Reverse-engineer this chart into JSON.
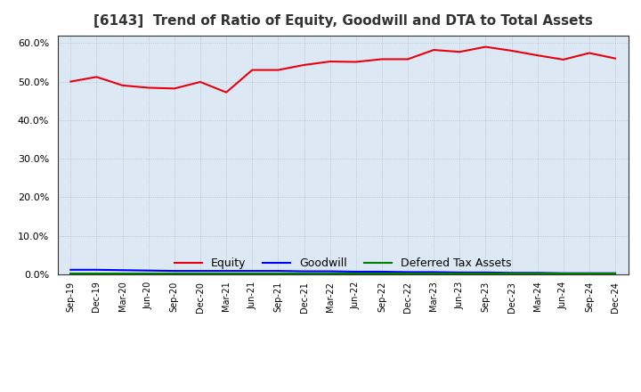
{
  "title": "[6143]  Trend of Ratio of Equity, Goodwill and DTA to Total Assets",
  "x_labels": [
    "Sep-19",
    "Dec-19",
    "Mar-20",
    "Jun-20",
    "Sep-20",
    "Dec-20",
    "Mar-21",
    "Jun-21",
    "Sep-21",
    "Dec-21",
    "Mar-22",
    "Jun-22",
    "Sep-22",
    "Dec-22",
    "Mar-23",
    "Jun-23",
    "Sep-23",
    "Dec-23",
    "Mar-24",
    "Jun-24",
    "Sep-24",
    "Dec-24"
  ],
  "equity": [
    0.5,
    0.512,
    0.49,
    0.484,
    0.482,
    0.499,
    0.472,
    0.53,
    0.53,
    0.543,
    0.552,
    0.551,
    0.558,
    0.558,
    0.582,
    0.577,
    0.59,
    0.58,
    0.568,
    0.557,
    0.574,
    0.56
  ],
  "goodwill": [
    0.012,
    0.012,
    0.011,
    0.01,
    0.009,
    0.009,
    0.009,
    0.009,
    0.009,
    0.008,
    0.008,
    0.007,
    0.007,
    0.006,
    0.006,
    0.005,
    0.005,
    0.004,
    0.004,
    0.003,
    0.003,
    0.003
  ],
  "dta": [
    0.003,
    0.003,
    0.003,
    0.003,
    0.003,
    0.003,
    0.003,
    0.003,
    0.003,
    0.003,
    0.003,
    0.003,
    0.003,
    0.003,
    0.003,
    0.003,
    0.003,
    0.003,
    0.003,
    0.003,
    0.003,
    0.003
  ],
  "equity_color": "#e8000d",
  "goodwill_color": "#0000ff",
  "dta_color": "#008000",
  "ylim": [
    0.0,
    0.62
  ],
  "yticks": [
    0.0,
    0.1,
    0.2,
    0.3,
    0.4,
    0.5,
    0.6
  ],
  "bg_color": "#ffffff",
  "plot_bg_color": "#dce9f5",
  "grid_color": "#999999",
  "title_fontsize": 11,
  "legend_labels": [
    "Equity",
    "Goodwill",
    "Deferred Tax Assets"
  ]
}
